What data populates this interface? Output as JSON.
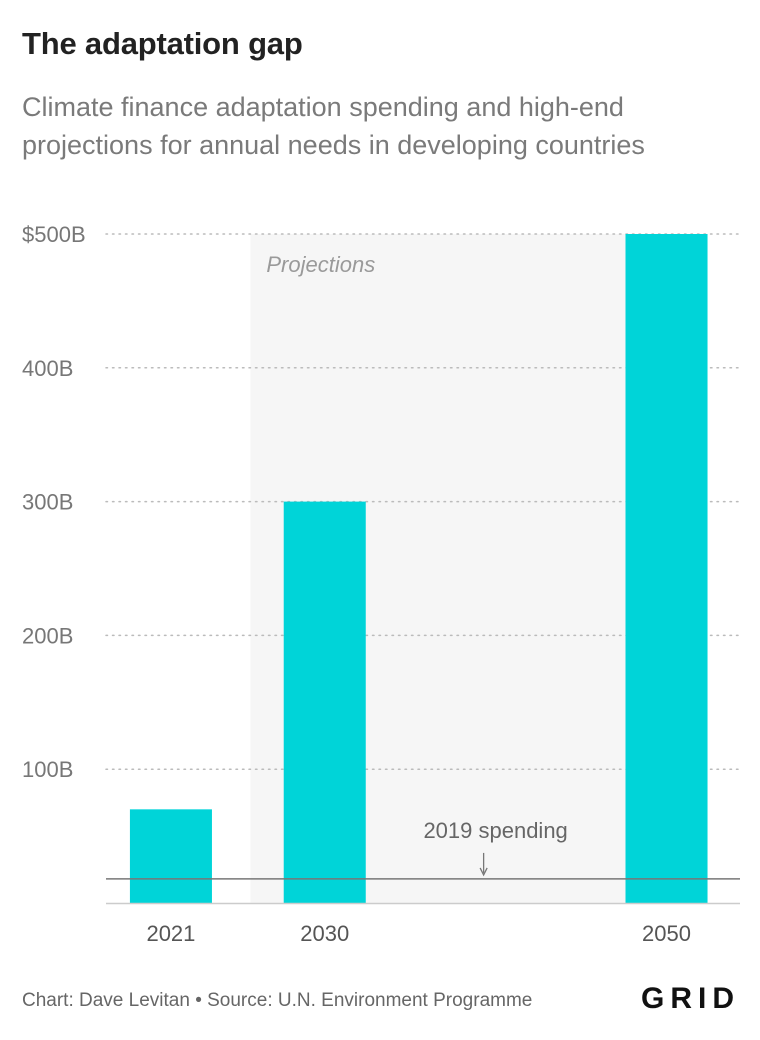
{
  "title": "The adaptation gap",
  "subtitle": "Climate finance adaptation spending and high-end projections for annual needs in developing countries",
  "footer": "Chart: Dave Levitan • Source: U.N. Environment Programme",
  "logo": "GRID",
  "colors": {
    "bar": "#00d4d8",
    "projection_band": "#f6f6f6",
    "gridline": "#bbbbbb",
    "reference_line": "#777777"
  },
  "chart_data": {
    "type": "bar",
    "title": "The adaptation gap",
    "categories": [
      "2021",
      "2030",
      "2050"
    ],
    "x_positions": [
      2021,
      2030,
      2050
    ],
    "values": [
      70,
      300,
      500
    ],
    "unit": "billion USD",
    "ylim": [
      0,
      500
    ],
    "yticks": [
      {
        "value": 100,
        "label": "100B"
      },
      {
        "value": 200,
        "label": "200B"
      },
      {
        "value": 300,
        "label": "300B"
      },
      {
        "value": 400,
        "label": "400B"
      },
      {
        "value": 500,
        "label": "$500B"
      }
    ],
    "grid": true,
    "projection_band": {
      "from": 2026,
      "to": 2052,
      "label": "Projections"
    },
    "reference_line": {
      "value": 18,
      "label": "2019 spending",
      "label_x": 2040
    }
  }
}
